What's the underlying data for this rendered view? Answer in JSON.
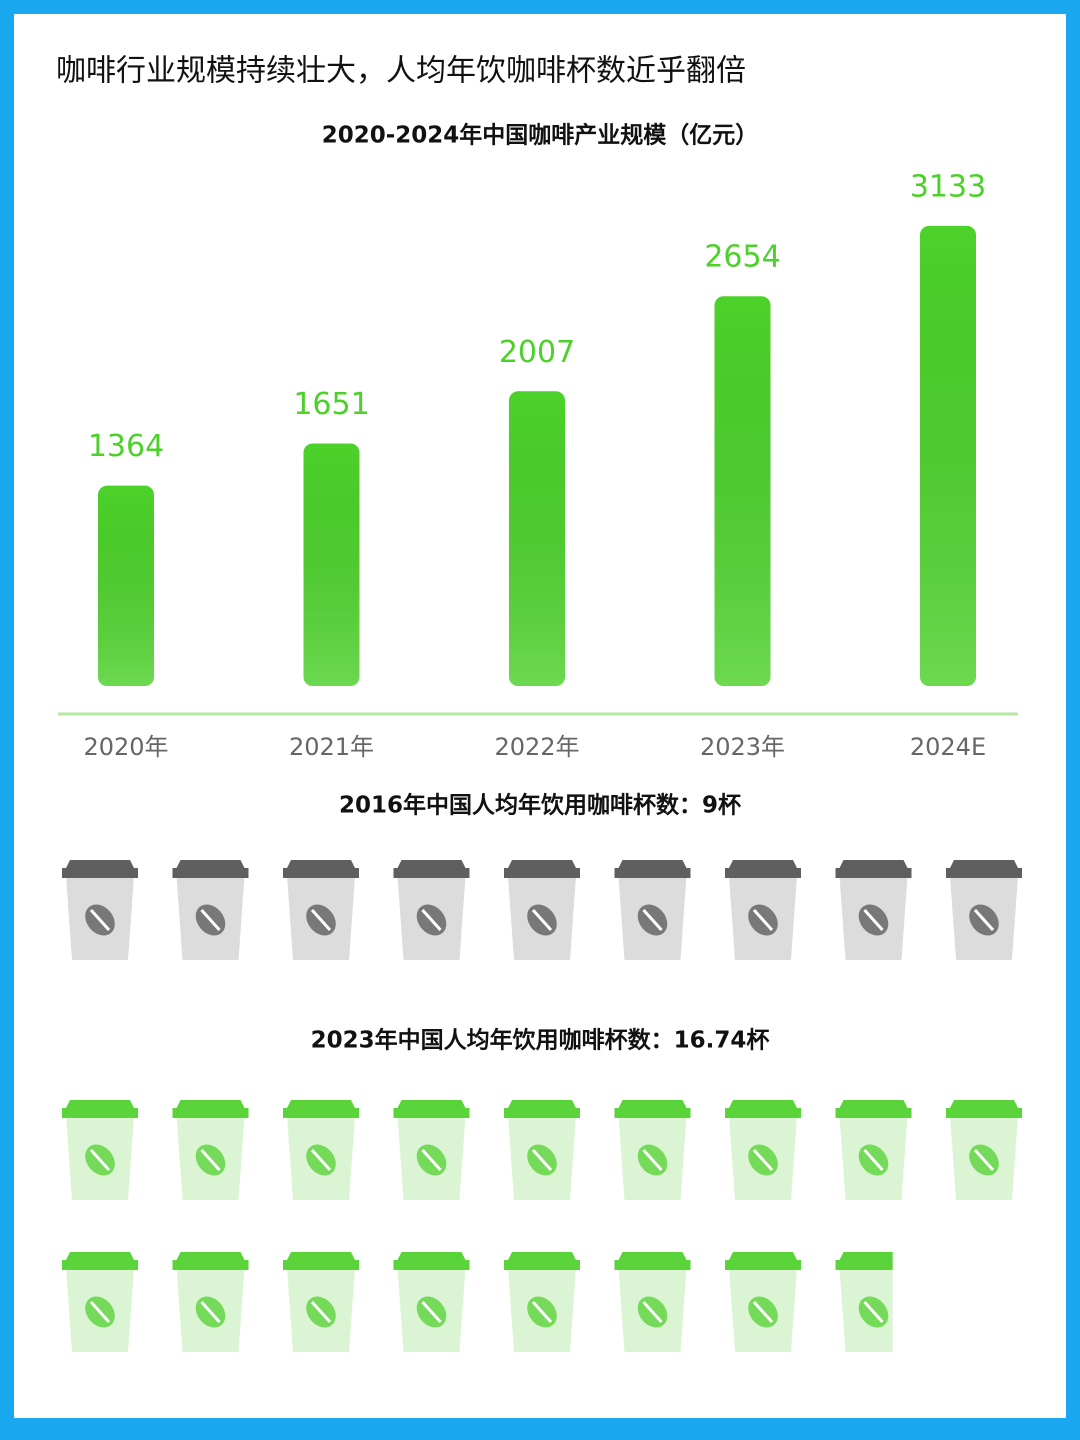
{
  "title": "咖啡行业规模持续壮大，人均年饮咖啡杯数近乎翻倍",
  "chart_data": [
    {
      "type": "bar",
      "title": "2020-2024年中国咖啡产业规模（亿元）",
      "categories": [
        "2020年",
        "2021年",
        "2022年",
        "2023年",
        "2024E"
      ],
      "values": [
        1364,
        1651,
        2007,
        2654,
        3133
      ],
      "color": "#4cd12a",
      "ylim": [
        0,
        3500
      ]
    },
    {
      "type": "pictogram",
      "title": "2016年中国人均年饮用咖啡杯数：9杯",
      "values": [
        9
      ],
      "color": "#5f5f5f"
    },
    {
      "type": "pictogram",
      "title": "2023年中国人均年饮用咖啡杯数：16.74杯",
      "values": [
        16.74
      ],
      "color": "#5bd33a"
    }
  ]
}
